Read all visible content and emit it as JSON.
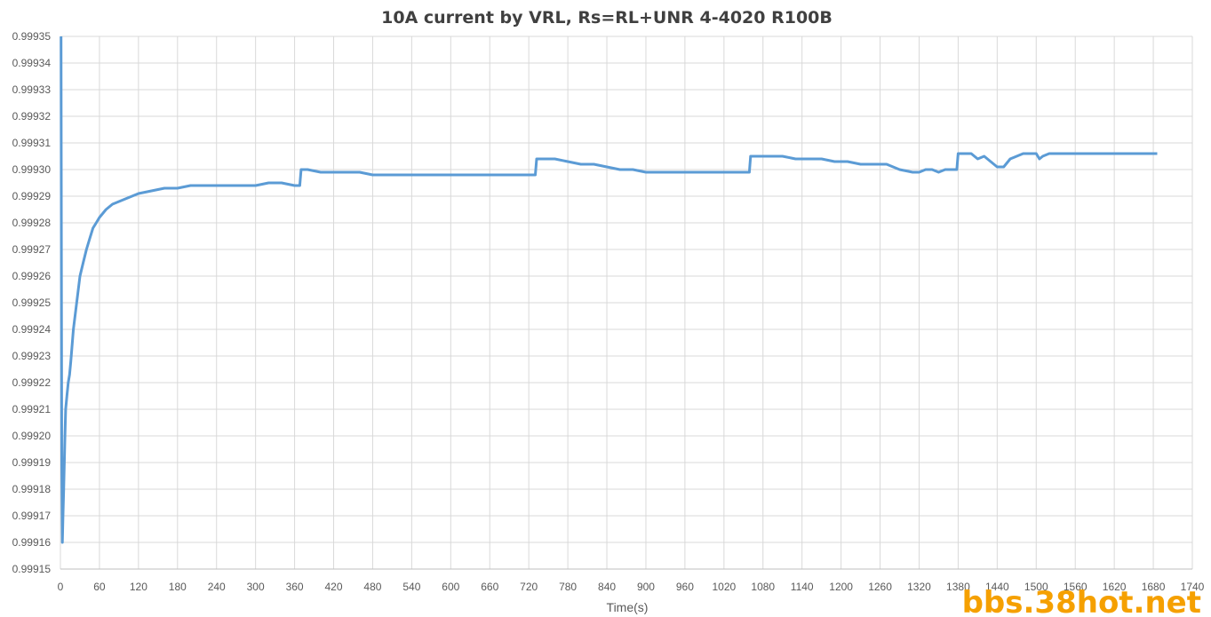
{
  "chart_data": {
    "type": "line",
    "title": "10A current by VRL, Rs=RL+UNR 4-4020 R100B",
    "xlabel": "Time(s)",
    "ylabel": "",
    "xlim": [
      0,
      1740
    ],
    "ylim": [
      0.99915,
      0.99935
    ],
    "xticks": [
      "0",
      "60",
      "120",
      "180",
      "240",
      "300",
      "360",
      "420",
      "480",
      "540",
      "600",
      "660",
      "720",
      "780",
      "840",
      "900",
      "960",
      "1020",
      "1080",
      "1140",
      "1200",
      "1260",
      "1320",
      "1380",
      "1440",
      "1500",
      "1560",
      "1620",
      "1680",
      "1740"
    ],
    "yticks": [
      "0.99915",
      "0.99916",
      "0.99917",
      "0.99918",
      "0.99919",
      "0.99920",
      "0.99921",
      "0.99922",
      "0.99923",
      "0.99924",
      "0.99925",
      "0.99926",
      "0.99927",
      "0.99928",
      "0.99929",
      "0.99930",
      "0.99931",
      "0.99932",
      "0.99933",
      "0.99934",
      "0.99935"
    ],
    "grid": true,
    "legend": "none",
    "color": "#5b9bd5",
    "series": [
      {
        "x": [
          1,
          2,
          3,
          4,
          5,
          6,
          7,
          8,
          10,
          12,
          14,
          16,
          20,
          25,
          30,
          35,
          40,
          45,
          50,
          55,
          60,
          70,
          80,
          90,
          100,
          120,
          140,
          160,
          180,
          200,
          220,
          240,
          260,
          280,
          300,
          320,
          340,
          360,
          368,
          370,
          380,
          400,
          420,
          440,
          460,
          480,
          500,
          520,
          540,
          560,
          580,
          600,
          620,
          640,
          660,
          680,
          700,
          720,
          730,
          732,
          740,
          760,
          780,
          800,
          820,
          840,
          860,
          880,
          900,
          920,
          940,
          960,
          980,
          1000,
          1020,
          1040,
          1059,
          1061,
          1070,
          1090,
          1110,
          1130,
          1150,
          1170,
          1190,
          1210,
          1230,
          1250,
          1270,
          1290,
          1310,
          1320,
          1330,
          1340,
          1350,
          1360,
          1370,
          1378,
          1380,
          1390,
          1400,
          1410,
          1420,
          1430,
          1440,
          1450,
          1460,
          1470,
          1480,
          1490,
          1500,
          1505,
          1510,
          1520,
          1540,
          1560,
          1580,
          1600,
          1620,
          1640,
          1660,
          1680,
          1686
        ],
        "y": [
          0.99935,
          0.99919,
          0.99916,
          0.99917,
          0.99918,
          0.99919,
          0.9992,
          0.99921,
          0.999215,
          0.99922,
          0.999223,
          0.999228,
          0.99924,
          0.99925,
          0.99926,
          0.999265,
          0.99927,
          0.999274,
          0.999278,
          0.99928,
          0.999282,
          0.999285,
          0.999287,
          0.999288,
          0.999289,
          0.999291,
          0.999292,
          0.999293,
          0.999293,
          0.999294,
          0.999294,
          0.999294,
          0.999294,
          0.999294,
          0.999294,
          0.999295,
          0.999295,
          0.999294,
          0.999294,
          0.9993,
          0.9993,
          0.999299,
          0.999299,
          0.999299,
          0.999299,
          0.999298,
          0.999298,
          0.999298,
          0.999298,
          0.999298,
          0.999298,
          0.999298,
          0.999298,
          0.999298,
          0.999298,
          0.999298,
          0.999298,
          0.999298,
          0.999298,
          0.999304,
          0.999304,
          0.999304,
          0.999303,
          0.999302,
          0.999302,
          0.999301,
          0.9993,
          0.9993,
          0.999299,
          0.999299,
          0.999299,
          0.999299,
          0.999299,
          0.999299,
          0.999299,
          0.999299,
          0.999299,
          0.999305,
          0.999305,
          0.999305,
          0.999305,
          0.999304,
          0.999304,
          0.999304,
          0.999303,
          0.999303,
          0.999302,
          0.999302,
          0.999302,
          0.9993,
          0.999299,
          0.999299,
          0.9993,
          0.9993,
          0.999299,
          0.9993,
          0.9993,
          0.9993,
          0.999306,
          0.999306,
          0.999306,
          0.999304,
          0.999305,
          0.999303,
          0.999301,
          0.999301,
          0.999304,
          0.999305,
          0.999306,
          0.999306,
          0.999306,
          0.999304,
          0.999305,
          0.999306,
          0.999306,
          0.999306,
          0.999306,
          0.999306,
          0.999306,
          0.999306,
          0.999306,
          0.999306,
          0.999306
        ]
      }
    ]
  },
  "watermark": "bbs.38hot.net"
}
